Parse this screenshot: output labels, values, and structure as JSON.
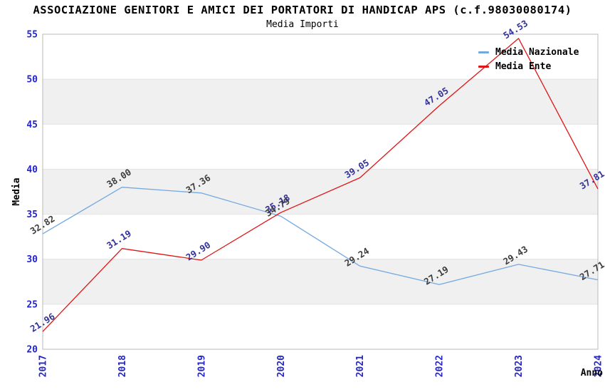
{
  "page": {
    "background": "#ffffff"
  },
  "chart_data": {
    "type": "line",
    "title": "ASSOCIAZIONE GENITORI E AMICI DEI PORTATORI DI HANDICAP APS (c.f.98030080174)",
    "subtitle": "Media Importi",
    "xlabel": "Anno",
    "ylabel": "Media",
    "x_categories": [
      "2017",
      "2018",
      "2019",
      "2020",
      "2021",
      "2022",
      "2023",
      "2024"
    ],
    "ylim": [
      20,
      55
    ],
    "ytick_step": 5,
    "grid": "horizontal-gridlines-with-alternating-bands",
    "legend_position": "top-right-inside",
    "series": [
      {
        "name": "Media Nazionale",
        "color": "#74a9e0",
        "label_color": "#3d3d3d",
        "values": [
          32.82,
          38.0,
          37.36,
          34.79,
          29.24,
          27.19,
          29.43,
          27.71
        ]
      },
      {
        "name": "Media Ente",
        "color": "#e01414",
        "label_color": "#333399",
        "values": [
          21.96,
          31.19,
          29.9,
          35.18,
          39.05,
          47.05,
          54.53,
          37.81
        ]
      }
    ],
    "colors": {
      "tick_label": "#2424cc",
      "band_gray": "#f0f0f0",
      "grid_line": "#e2e2e2",
      "plot_border": "#b8b8b8",
      "text": "#000000"
    }
  }
}
